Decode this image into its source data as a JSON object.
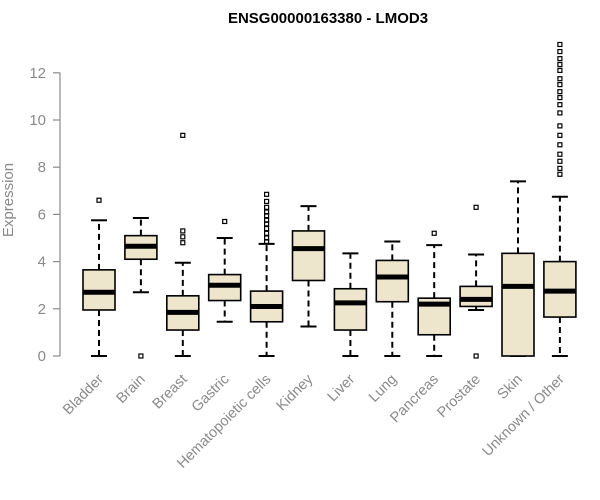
{
  "chart_data": {
    "type": "boxplot",
    "title": "ENSG00000163380 - LMOD3",
    "xlabel": "",
    "ylabel": "Expression",
    "ylim": [
      0,
      13.2
    ],
    "yticks": [
      0,
      2,
      4,
      6,
      8,
      10,
      12
    ],
    "grid": false,
    "legend": "none",
    "colors": {
      "box_fill": "#ede6cc",
      "stroke": "#000000",
      "axis_text": "#8a8a8a",
      "title": "#000000"
    },
    "categories": [
      "Bladder",
      "Brain",
      "Breast",
      "Gastric",
      "Hematopoietic cells",
      "Kidney",
      "Liver",
      "Lung",
      "Pancreas",
      "Prostate",
      "Skin",
      "Unknown / Other"
    ],
    "boxes": [
      {
        "whisker_low": 0.0,
        "q1": 1.95,
        "median": 2.7,
        "q3": 3.65,
        "whisker_high": 5.75,
        "outliers": [
          6.6
        ]
      },
      {
        "whisker_low": 2.7,
        "q1": 4.1,
        "median": 4.65,
        "q3": 5.1,
        "whisker_high": 5.85,
        "outliers": [
          0.0
        ]
      },
      {
        "whisker_low": 0.0,
        "q1": 1.1,
        "median": 1.85,
        "q3": 2.55,
        "whisker_high": 3.95,
        "outliers": [
          4.8,
          5.05,
          5.3,
          9.35
        ]
      },
      {
        "whisker_low": 1.45,
        "q1": 2.35,
        "median": 3.0,
        "q3": 3.45,
        "whisker_high": 5.0,
        "outliers": [
          5.7
        ]
      },
      {
        "whisker_low": 0.0,
        "q1": 1.45,
        "median": 2.1,
        "q3": 2.75,
        "whisker_high": 4.75,
        "outliers": [
          4.85,
          5.0,
          5.2,
          5.4,
          5.6,
          5.75,
          5.95,
          6.1,
          6.3,
          6.55,
          6.85
        ]
      },
      {
        "whisker_low": 1.25,
        "q1": 3.2,
        "median": 4.55,
        "q3": 5.3,
        "whisker_high": 6.35,
        "outliers": []
      },
      {
        "whisker_low": 0.0,
        "q1": 1.1,
        "median": 2.25,
        "q3": 2.85,
        "whisker_high": 4.35,
        "outliers": []
      },
      {
        "whisker_low": 0.0,
        "q1": 2.3,
        "median": 3.35,
        "q3": 4.05,
        "whisker_high": 4.85,
        "outliers": []
      },
      {
        "whisker_low": 0.0,
        "q1": 0.9,
        "median": 2.2,
        "q3": 2.45,
        "whisker_high": 4.7,
        "outliers": [
          5.2
        ]
      },
      {
        "whisker_low": 1.95,
        "q1": 2.1,
        "median": 2.4,
        "q3": 2.95,
        "whisker_high": 4.3,
        "outliers": [
          0.0,
          6.3
        ]
      },
      {
        "whisker_low": 0.0,
        "q1": 0.0,
        "median": 2.95,
        "q3": 4.35,
        "whisker_high": 7.4,
        "outliers": []
      },
      {
        "whisker_low": 0.0,
        "q1": 1.65,
        "median": 2.75,
        "q3": 4.0,
        "whisker_high": 6.75,
        "outliers": [
          7.7,
          7.95,
          8.25,
          8.55,
          8.95,
          9.35,
          9.75,
          10.3,
          10.65,
          10.95,
          11.2,
          11.5,
          11.75,
          12.1,
          12.35,
          12.6,
          12.9,
          13.2
        ]
      }
    ]
  }
}
